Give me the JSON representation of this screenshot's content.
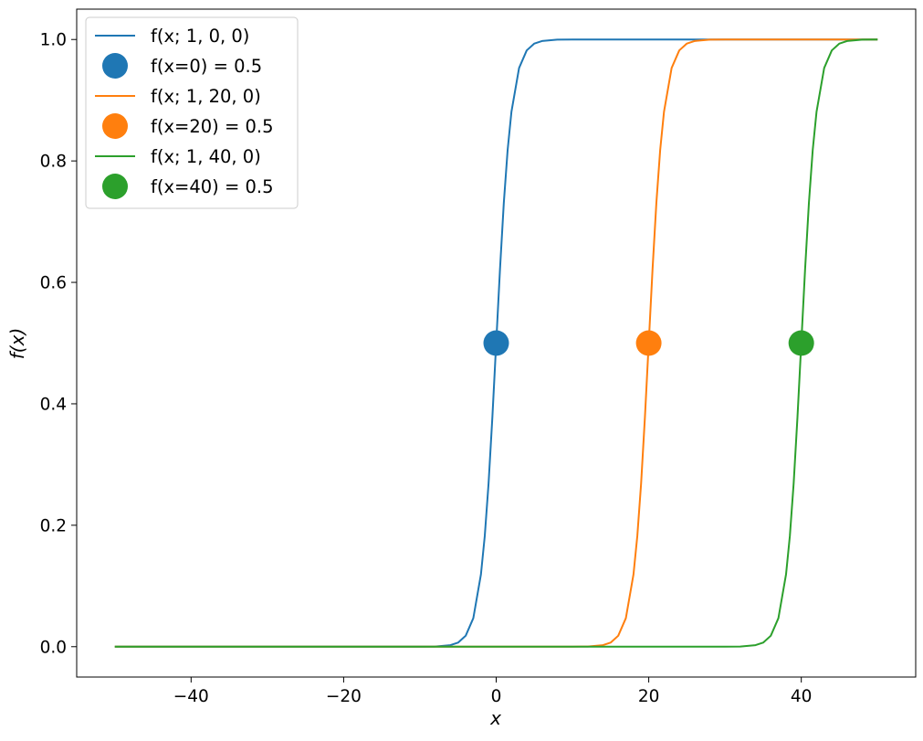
{
  "chart_data": {
    "type": "line",
    "title": "",
    "xlabel": "x",
    "ylabel": "f(x)",
    "xlim": [
      -55,
      55
    ],
    "ylim": [
      -0.05,
      1.05
    ],
    "x_ticks": [
      -40,
      -20,
      0,
      20,
      40
    ],
    "x_tick_labels": [
      "−40",
      "−20",
      "0",
      "20",
      "40"
    ],
    "y_ticks": [
      0.0,
      0.2,
      0.4,
      0.6,
      0.8,
      1.0
    ],
    "y_tick_labels": [
      "0.0",
      "0.2",
      "0.4",
      "0.6",
      "0.8",
      "1.0"
    ],
    "grid": false,
    "legend_position": "top-left",
    "series": [
      {
        "name": "f(x; 1, 0, 0)",
        "kind": "line",
        "color": "#1f77b4",
        "x": [
          -50,
          -10,
          -8,
          -6,
          -5,
          -4,
          -3,
          -2,
          -1.5,
          -1,
          -0.5,
          0,
          0.5,
          1,
          1.5,
          2,
          3,
          4,
          5,
          6,
          8,
          10,
          50
        ],
        "y": [
          0.0,
          0.0,
          0.0003,
          0.0025,
          0.0067,
          0.018,
          0.047,
          0.119,
          0.182,
          0.269,
          0.378,
          0.5,
          0.622,
          0.731,
          0.818,
          0.881,
          0.953,
          0.982,
          0.9933,
          0.9975,
          0.9997,
          1.0,
          1.0
        ]
      },
      {
        "name": "f(x=0) = 0.5",
        "kind": "marker",
        "color": "#1f77b4",
        "x": [
          0
        ],
        "y": [
          0.5
        ]
      },
      {
        "name": "f(x; 1, 20, 0)",
        "kind": "line",
        "color": "#ff7f0e",
        "x": [
          -50,
          10,
          12,
          14,
          15,
          16,
          17,
          18,
          18.5,
          19,
          19.5,
          20,
          20.5,
          21,
          21.5,
          22,
          23,
          24,
          25,
          26,
          28,
          30,
          50
        ],
        "y": [
          0.0,
          0.0,
          0.0003,
          0.0025,
          0.0067,
          0.018,
          0.047,
          0.119,
          0.182,
          0.269,
          0.378,
          0.5,
          0.622,
          0.731,
          0.818,
          0.881,
          0.953,
          0.982,
          0.9933,
          0.9975,
          0.9997,
          1.0,
          1.0
        ]
      },
      {
        "name": "f(x=20) = 0.5",
        "kind": "marker",
        "color": "#ff7f0e",
        "x": [
          20
        ],
        "y": [
          0.5
        ]
      },
      {
        "name": "f(x; 1, 40, 0)",
        "kind": "line",
        "color": "#2ca02c",
        "x": [
          -50,
          30,
          32,
          34,
          35,
          36,
          37,
          38,
          38.5,
          39,
          39.5,
          40,
          40.5,
          41,
          41.5,
          42,
          43,
          44,
          45,
          46,
          48,
          50
        ],
        "y": [
          0.0,
          0.0,
          0.0003,
          0.0025,
          0.0067,
          0.018,
          0.047,
          0.119,
          0.182,
          0.269,
          0.378,
          0.5,
          0.622,
          0.731,
          0.818,
          0.881,
          0.953,
          0.982,
          0.9933,
          0.9975,
          0.9997,
          1.0
        ]
      },
      {
        "name": "f(x=40) = 0.5",
        "kind": "marker",
        "color": "#2ca02c",
        "x": [
          40
        ],
        "y": [
          0.5
        ]
      }
    ]
  }
}
